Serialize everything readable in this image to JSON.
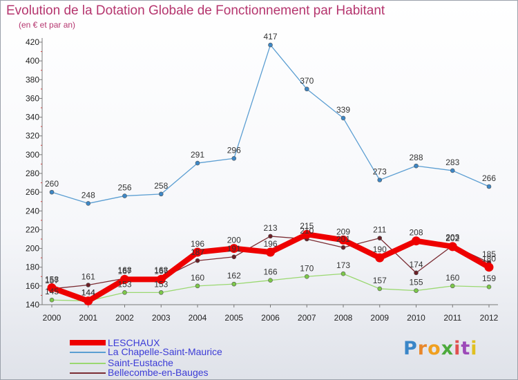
{
  "header": {
    "title": "Evolution de la Dotation Globale de Fonctionnement par Habitant",
    "subtitle": "(en € et par an)"
  },
  "logo_text": "Proxiti",
  "chart_data": {
    "type": "line",
    "title": "Evolution de la Dotation Globale de Fonctionnement par Habitant",
    "subtitle": "(en € et par an)",
    "xlabel": "",
    "ylabel": "",
    "ylim": [
      140,
      420
    ],
    "ytick_step": 20,
    "grid": false,
    "legend_position": "bottom-left",
    "categories": [
      "2000",
      "2001",
      "2002",
      "2003",
      "2004",
      "2005",
      "2006",
      "2007",
      "2008",
      "2009",
      "2010",
      "2011",
      "2012"
    ],
    "series": [
      {
        "name": "LESCHAUX",
        "color": "#ee0000",
        "marker": "#ee0000",
        "values": [
          158,
          144,
          167,
          167,
          196,
          200,
          196,
          215,
          209,
          190,
          208,
          202,
          180
        ]
      },
      {
        "name": "La Chapelle-Saint-Maurice",
        "color": "#5b9ed2",
        "marker": "#3d87c6",
        "values": [
          260,
          248,
          256,
          258,
          291,
          296,
          417,
          370,
          339,
          273,
          288,
          283,
          266
        ]
      },
      {
        "name": "Saint-Eustache",
        "color": "#9ad870",
        "marker": "#7cc84a",
        "values": [
          145,
          144,
          153,
          153,
          160,
          162,
          166,
          170,
          173,
          157,
          155,
          160,
          159
        ]
      },
      {
        "name": "Bellecombe-en-Bauges",
        "color": "#7a2b32",
        "marker": "#6a1f26",
        "values": [
          157,
          161,
          168,
          168,
          187,
          191,
          213,
          210,
          201,
          211,
          174,
          203,
          185
        ]
      }
    ]
  }
}
